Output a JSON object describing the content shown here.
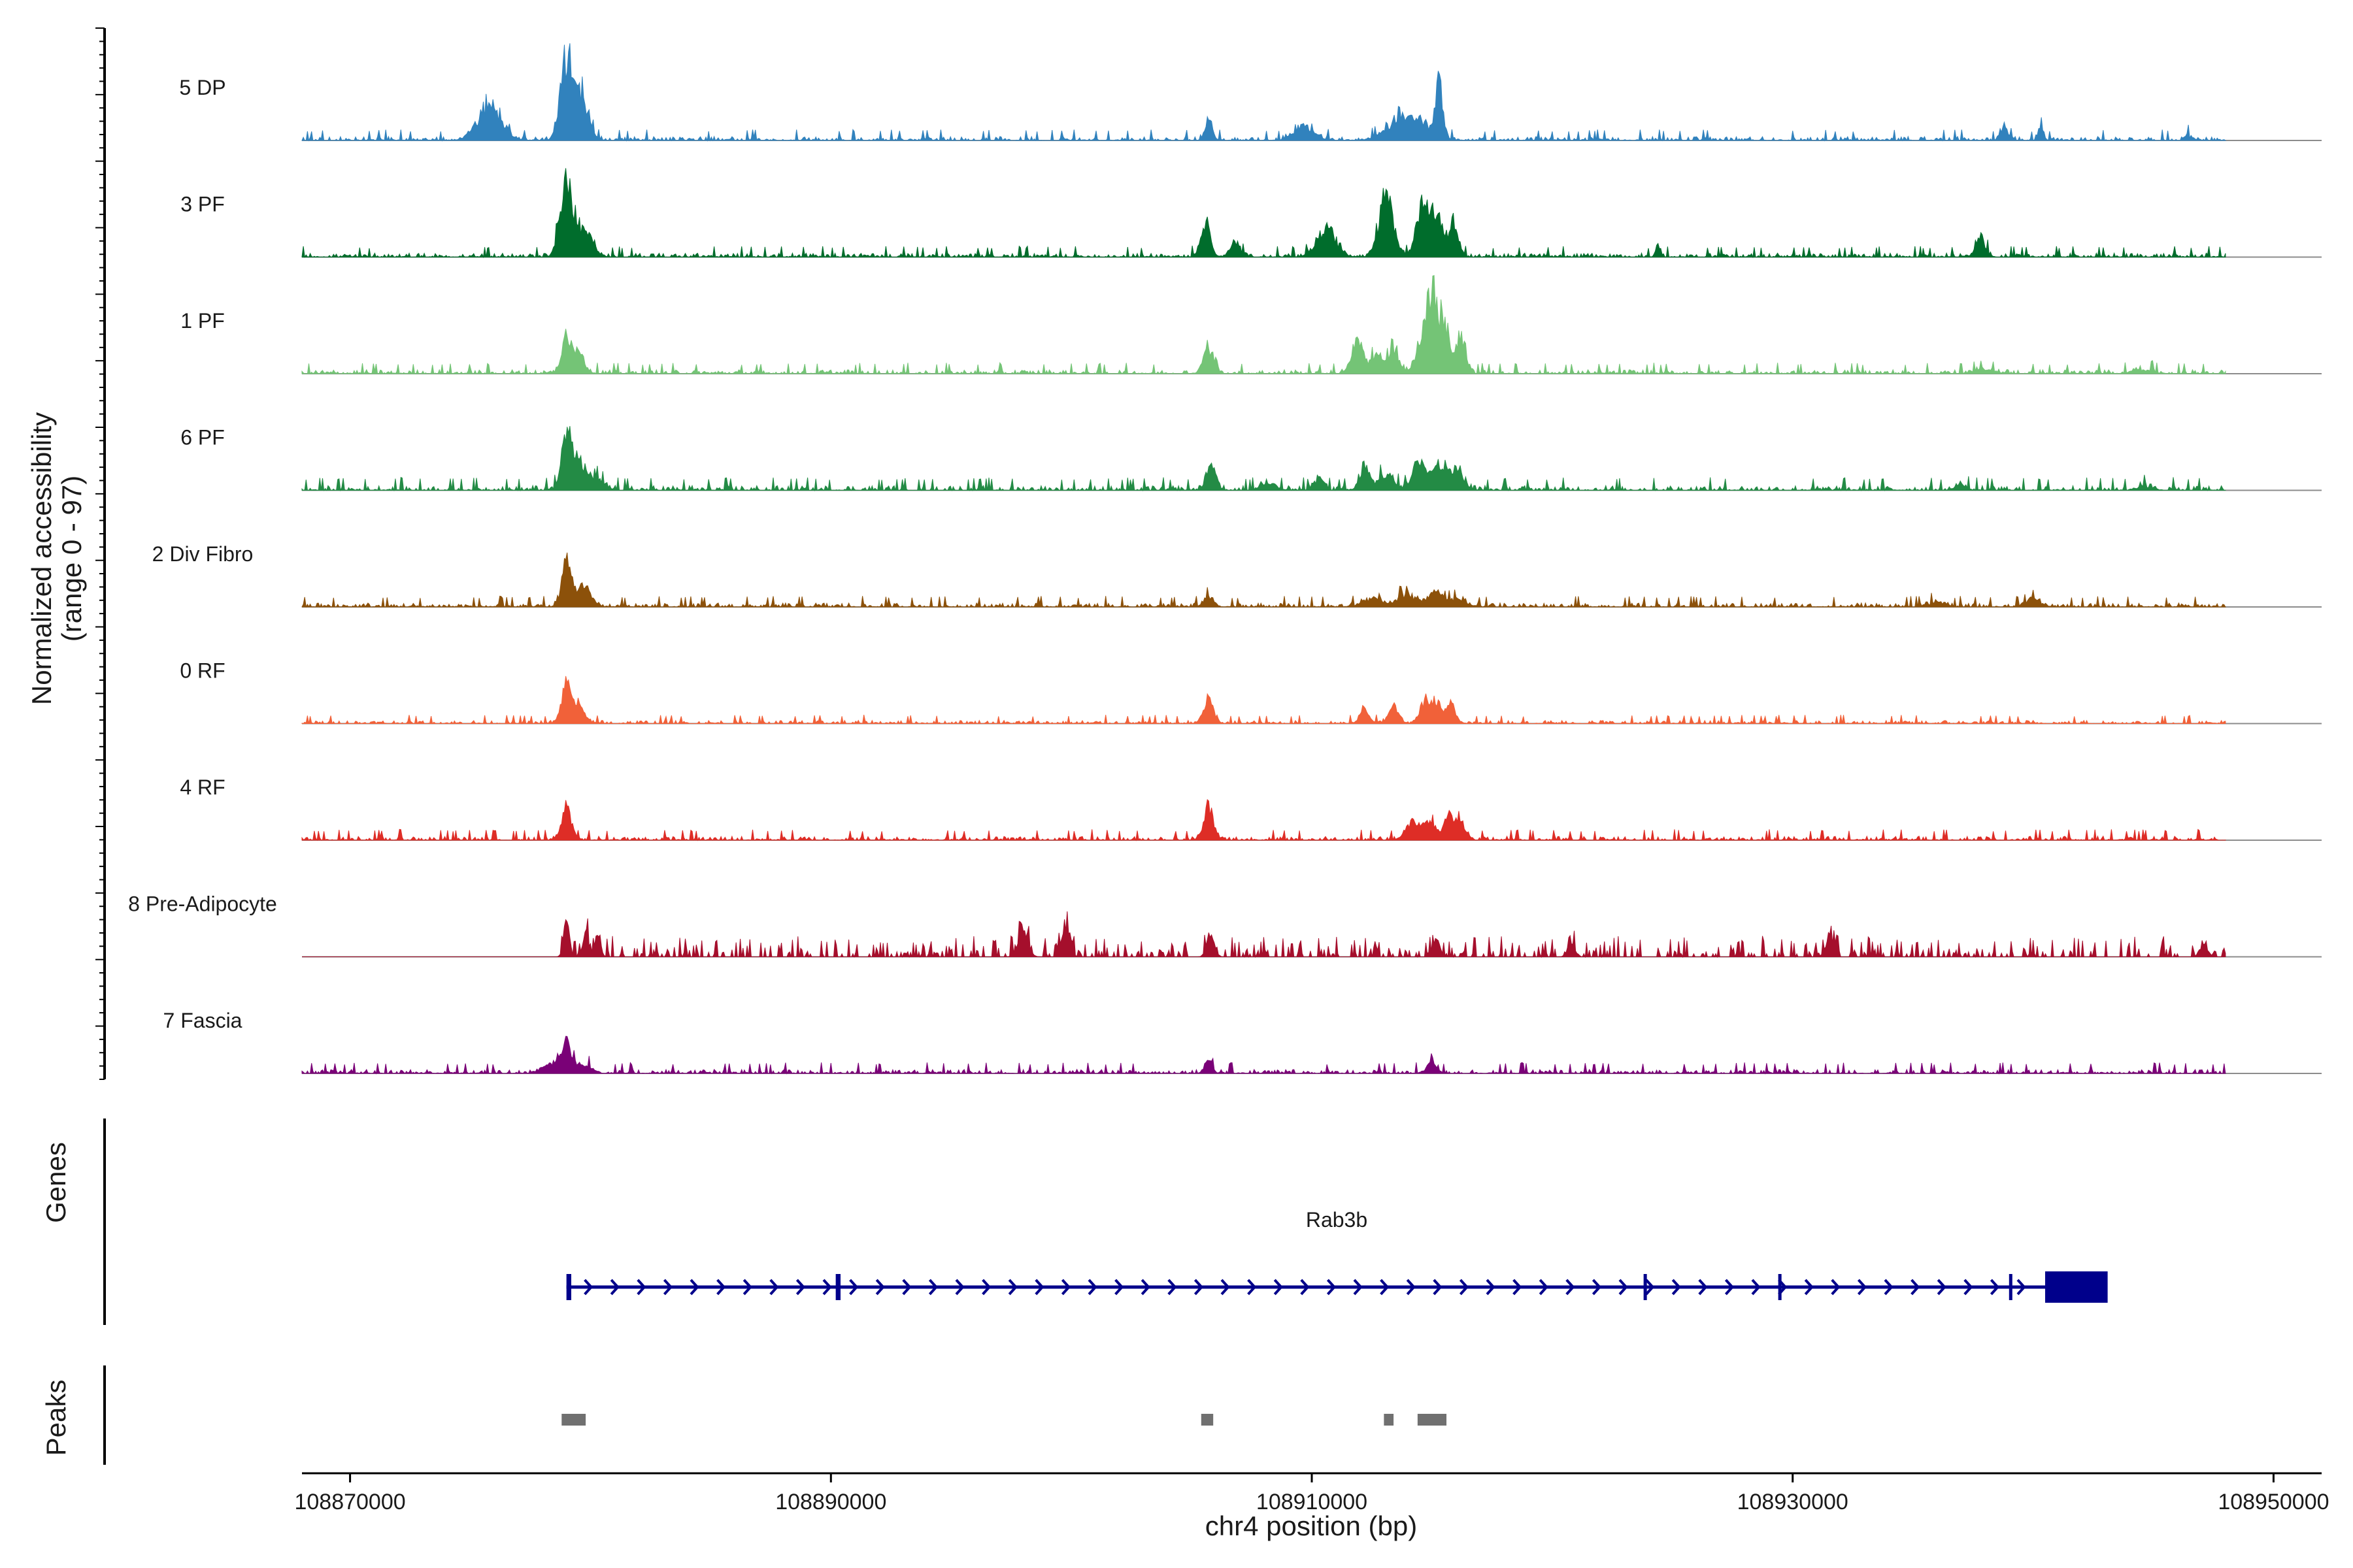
{
  "chart_data": {
    "type": "area",
    "title": "",
    "xlabel": "chr4 position (bp)",
    "ylabel": "Normalized accessibility",
    "ylabel_range": "(range 0 - 97)",
    "xlim": [
      108868000,
      108952000
    ],
    "x_ticks": [
      108870000,
      108890000,
      108910000,
      108930000,
      108950000
    ],
    "x_tick_labels": [
      "108870000",
      "108890000",
      "108910000",
      "108930000",
      "108950000"
    ],
    "ylim": [
      0,
      97
    ],
    "signal_span": [
      108868000,
      108948000
    ],
    "tracks": [
      {
        "name": "5 DP",
        "color": "#3182bd",
        "background": 0.05,
        "noise": 1.2,
        "peaks": [
          [
            108875800,
            500,
            0.42
          ],
          [
            108879000,
            250,
            1.0
          ],
          [
            108879600,
            300,
            0.55
          ],
          [
            108905700,
            150,
            0.25
          ],
          [
            108909700,
            400,
            0.18
          ],
          [
            108914000,
            700,
            0.35
          ],
          [
            108915300,
            150,
            0.7
          ],
          [
            108938800,
            150,
            0.2
          ],
          [
            108940300,
            100,
            0.2
          ],
          [
            108946400,
            100,
            0.08
          ]
        ]
      },
      {
        "name": "3 PF",
        "color": "#006d2c",
        "background": 0.05,
        "noise": 1.1,
        "peaks": [
          [
            108879000,
            250,
            1.0
          ],
          [
            108879800,
            300,
            0.35
          ],
          [
            108905600,
            200,
            0.4
          ],
          [
            108906800,
            200,
            0.2
          ],
          [
            108910600,
            400,
            0.35
          ],
          [
            108913100,
            300,
            0.75
          ],
          [
            108914600,
            250,
            0.65
          ],
          [
            108915200,
            250,
            0.55
          ],
          [
            108915900,
            200,
            0.45
          ],
          [
            108924400,
            100,
            0.15
          ],
          [
            108937800,
            200,
            0.25
          ]
        ]
      },
      {
        "name": "1 PF",
        "color": "#74c476",
        "background": 0.05,
        "noise": 1.1,
        "peaks": [
          [
            108879000,
            200,
            0.45
          ],
          [
            108879500,
            250,
            0.25
          ],
          [
            108905700,
            200,
            0.35
          ],
          [
            108911900,
            250,
            0.4
          ],
          [
            108912700,
            200,
            0.25
          ],
          [
            108913400,
            250,
            0.28
          ],
          [
            108914600,
            250,
            0.45
          ],
          [
            108915000,
            200,
            1.0
          ],
          [
            108915500,
            200,
            0.7
          ],
          [
            108916200,
            200,
            0.5
          ],
          [
            108938000,
            400,
            0.05
          ],
          [
            108944500,
            400,
            0.05
          ]
        ]
      },
      {
        "name": "6 PF",
        "color": "#238b45",
        "background": 0.06,
        "noise": 1.2,
        "peaks": [
          [
            108879000,
            200,
            0.7
          ],
          [
            108879500,
            250,
            0.4
          ],
          [
            108880200,
            300,
            0.15
          ],
          [
            108905800,
            200,
            0.3
          ],
          [
            108908200,
            300,
            0.1
          ],
          [
            108910300,
            200,
            0.15
          ],
          [
            108912200,
            200,
            0.3
          ],
          [
            108913100,
            300,
            0.2
          ],
          [
            108914500,
            300,
            0.35
          ],
          [
            108915300,
            300,
            0.3
          ],
          [
            108916000,
            300,
            0.25
          ],
          [
            108937000,
            200,
            0.08
          ],
          [
            108944600,
            300,
            0.05
          ]
        ]
      },
      {
        "name": "2 Div Fibro",
        "color": "#8c510a",
        "background": 0.05,
        "noise": 1.3,
        "peaks": [
          [
            108879000,
            200,
            0.55
          ],
          [
            108879700,
            300,
            0.25
          ],
          [
            108905700,
            200,
            0.12
          ],
          [
            108912500,
            400,
            0.1
          ],
          [
            108914000,
            400,
            0.15
          ],
          [
            108915100,
            250,
            0.2
          ],
          [
            108916000,
            400,
            0.1
          ],
          [
            108936000,
            300,
            0.06
          ],
          [
            108940000,
            300,
            0.09
          ]
        ]
      },
      {
        "name": "0 RF",
        "color": "#f16139",
        "background": 0.04,
        "noise": 1.0,
        "peaks": [
          [
            108879000,
            200,
            0.48
          ],
          [
            108879500,
            250,
            0.2
          ],
          [
            108905700,
            200,
            0.3
          ],
          [
            108912200,
            200,
            0.18
          ],
          [
            108913400,
            200,
            0.25
          ],
          [
            108914700,
            200,
            0.3
          ],
          [
            108915200,
            200,
            0.28
          ],
          [
            108915800,
            200,
            0.22
          ]
        ]
      },
      {
        "name": "4 RF",
        "color": "#de2d26",
        "background": 0.05,
        "noise": 1.1,
        "peaks": [
          [
            108879000,
            200,
            0.4
          ],
          [
            108905700,
            200,
            0.42
          ],
          [
            108914200,
            300,
            0.2
          ],
          [
            108914900,
            250,
            0.25
          ],
          [
            108915700,
            200,
            0.3
          ],
          [
            108916200,
            200,
            0.22
          ]
        ]
      },
      {
        "name": "8 Pre-Adipocyte",
        "color": "#a50f2c",
        "background": 0.0,
        "noise": 0.0,
        "spiky": true,
        "peaks": [
          [
            108879000,
            120,
            0.4
          ],
          [
            108879800,
            120,
            0.3
          ],
          [
            108880300,
            120,
            0.25
          ],
          [
            108898000,
            200,
            0.35
          ],
          [
            108899800,
            150,
            0.45
          ],
          [
            108905800,
            150,
            0.35
          ],
          [
            108915200,
            150,
            0.2
          ],
          [
            108920800,
            150,
            0.2
          ],
          [
            108931500,
            150,
            0.25
          ],
          [
            108947100,
            150,
            0.2
          ]
        ]
      },
      {
        "name": "7 Fascia",
        "color": "#7a0177",
        "background": 0.05,
        "noise": 1.0,
        "peaks": [
          [
            108878400,
            400,
            0.12
          ],
          [
            108879000,
            200,
            0.35
          ],
          [
            108879700,
            300,
            0.12
          ],
          [
            108905700,
            150,
            0.18
          ],
          [
            108915000,
            200,
            0.15
          ]
        ]
      }
    ],
    "genes": {
      "label": "Genes",
      "name": "Rab3b",
      "color": "#00008b",
      "start": 108879000,
      "end": 108943000,
      "exons": [
        [
          108879000,
          108879200
        ],
        [
          108890200,
          108890400
        ],
        [
          108923800,
          108923900
        ],
        [
          108929400,
          108929500
        ],
        [
          108939000,
          108939100
        ]
      ],
      "utr_block": [
        108940500,
        108943100
      ],
      "strand": "+"
    },
    "peaks_track": {
      "label": "Peaks",
      "color": "#707070",
      "regions": [
        [
          108878800,
          108879800
        ],
        [
          108905400,
          108905900
        ],
        [
          108913000,
          108913400
        ],
        [
          108914400,
          108915600
        ]
      ]
    }
  }
}
